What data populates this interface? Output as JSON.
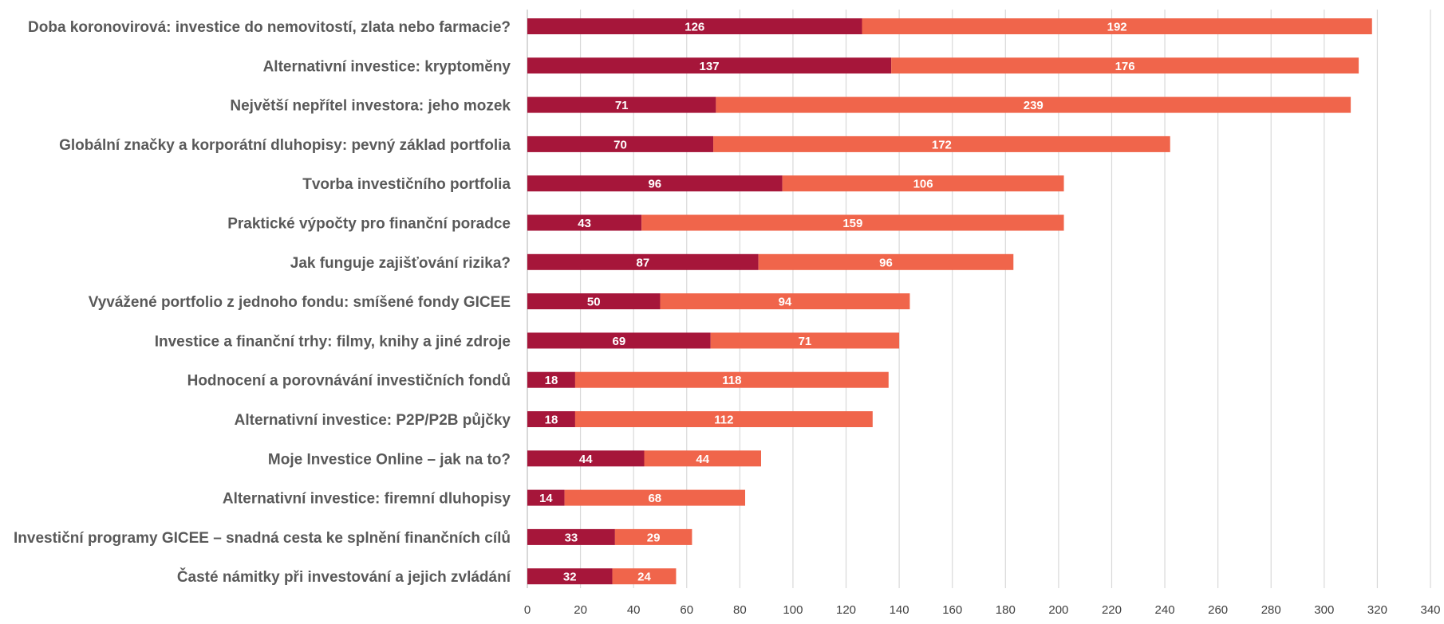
{
  "chart_data": {
    "type": "bar",
    "orientation": "horizontal",
    "stacked": true,
    "categories": [
      "Doba koronovirová: investice do nemovitostí, zlata nebo farmacie?",
      "Alternativní investice: kryptoměny",
      "Největší nepřítel investora: jeho mozek",
      "Globální značky a korporátní dluhopisy: pevný základ portfolia",
      "Tvorba investičního portfolia",
      "Praktické výpočty pro finanční poradce",
      "Jak funguje zajišťování rizika?",
      "Vyvážené portfolio z jednoho fondu: smíšené fondy GICEE",
      "Investice a finanční trhy: filmy, knihy a jiné zdroje",
      "Hodnocení a porovnávání investičních fondů",
      "Alternativní investice: P2P/P2B půjčky",
      "Moje Investice Online – jak na to?",
      "Alternativní investice: firemní dluhopisy",
      "Investiční programy GICEE – snadná cesta ke splnění finančních cílů",
      "Časté námitky při investování a jejich zvládání"
    ],
    "series": [
      {
        "color": "#a6163a",
        "values": [
          126,
          137,
          71,
          70,
          96,
          43,
          87,
          50,
          69,
          18,
          18,
          44,
          14,
          33,
          32
        ]
      },
      {
        "color": "#f0654b",
        "values": [
          192,
          176,
          239,
          172,
          106,
          159,
          96,
          94,
          71,
          118,
          112,
          44,
          68,
          29,
          24
        ]
      }
    ],
    "xlim": [
      0,
      340
    ],
    "x_ticks": [
      "0",
      "20",
      "40",
      "60",
      "80",
      "100",
      "120",
      "140",
      "160",
      "180",
      "200",
      "220",
      "240",
      "260",
      "280",
      "300",
      "320",
      "340"
    ],
    "grid": true,
    "legend": "none",
    "title": "",
    "xlabel": "",
    "ylabel": ""
  }
}
